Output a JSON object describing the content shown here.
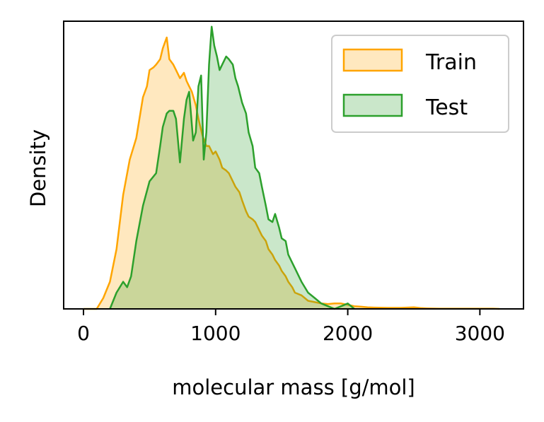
{
  "chart_data": {
    "type": "area",
    "title": "",
    "xlabel": "molecular mass [g/mol]",
    "ylabel": "Density",
    "xlim": [
      -150,
      3330
    ],
    "ylim": [
      0,
      1.06
    ],
    "xticks": [
      0,
      1000,
      2000,
      3000
    ],
    "xtick_labels": [
      "0",
      "1000",
      "2000",
      "3000"
    ],
    "yticks_shown": false,
    "grid": false,
    "legend_position": "top-right",
    "series": [
      {
        "name": "Train",
        "color": "#ffa500",
        "fill_opacity": 0.25,
        "x": [
          0,
          100,
          150,
          200,
          250,
          300,
          350,
          400,
          450,
          480,
          500,
          530,
          550,
          580,
          600,
          630,
          650,
          680,
          700,
          730,
          760,
          780,
          800,
          820,
          850,
          870,
          900,
          930,
          950,
          980,
          1000,
          1030,
          1050,
          1080,
          1100,
          1130,
          1150,
          1180,
          1200,
          1230,
          1250,
          1280,
          1300,
          1330,
          1350,
          1380,
          1400,
          1430,
          1450,
          1480,
          1500,
          1530,
          1550,
          1580,
          1600,
          1650,
          1700,
          1750,
          1800,
          1850,
          1900,
          1950,
          2000,
          2050,
          2100,
          2150,
          2200,
          2300,
          2400,
          2500,
          2550,
          2600,
          2700,
          2800,
          2900,
          3000,
          3100,
          3150
        ],
        "values": [
          0.0,
          0.0,
          0.04,
          0.1,
          0.22,
          0.42,
          0.55,
          0.63,
          0.78,
          0.82,
          0.88,
          0.89,
          0.9,
          0.92,
          0.96,
          1.0,
          0.92,
          0.9,
          0.88,
          0.85,
          0.87,
          0.84,
          0.82,
          0.8,
          0.75,
          0.7,
          0.64,
          0.6,
          0.6,
          0.57,
          0.58,
          0.55,
          0.52,
          0.51,
          0.5,
          0.47,
          0.45,
          0.43,
          0.4,
          0.36,
          0.34,
          0.33,
          0.32,
          0.29,
          0.27,
          0.25,
          0.22,
          0.2,
          0.18,
          0.16,
          0.14,
          0.12,
          0.1,
          0.08,
          0.06,
          0.05,
          0.03,
          0.025,
          0.02,
          0.018,
          0.02,
          0.02,
          0.015,
          0.01,
          0.008,
          0.006,
          0.005,
          0.004,
          0.004,
          0.006,
          0.003,
          0.002,
          0.001,
          0.001,
          0.001,
          0.001,
          0.001,
          0.0
        ]
      },
      {
        "name": "Test",
        "color": "#2ca02c",
        "fill_opacity": 0.25,
        "x": [
          200,
          250,
          300,
          330,
          360,
          400,
          450,
          500,
          550,
          580,
          600,
          630,
          650,
          680,
          700,
          730,
          760,
          780,
          800,
          830,
          850,
          870,
          890,
          910,
          930,
          950,
          970,
          990,
          1010,
          1030,
          1050,
          1080,
          1100,
          1130,
          1150,
          1170,
          1200,
          1230,
          1250,
          1280,
          1300,
          1330,
          1350,
          1380,
          1400,
          1430,
          1450,
          1480,
          1500,
          1530,
          1550,
          1580,
          1600,
          1650,
          1700,
          1750,
          1800,
          1850,
          1900,
          1950,
          2000,
          2050
        ],
        "values": [
          0.0,
          0.06,
          0.1,
          0.08,
          0.12,
          0.25,
          0.38,
          0.47,
          0.5,
          0.6,
          0.67,
          0.72,
          0.73,
          0.73,
          0.7,
          0.54,
          0.7,
          0.77,
          0.8,
          0.62,
          0.65,
          0.82,
          0.86,
          0.55,
          0.65,
          0.9,
          1.04,
          0.97,
          0.93,
          0.88,
          0.9,
          0.93,
          0.92,
          0.9,
          0.85,
          0.82,
          0.76,
          0.72,
          0.65,
          0.6,
          0.52,
          0.5,
          0.45,
          0.38,
          0.33,
          0.32,
          0.35,
          0.3,
          0.26,
          0.25,
          0.2,
          0.17,
          0.15,
          0.1,
          0.06,
          0.04,
          0.02,
          0.01,
          0.0,
          0.01,
          0.02,
          0.0
        ]
      }
    ]
  }
}
